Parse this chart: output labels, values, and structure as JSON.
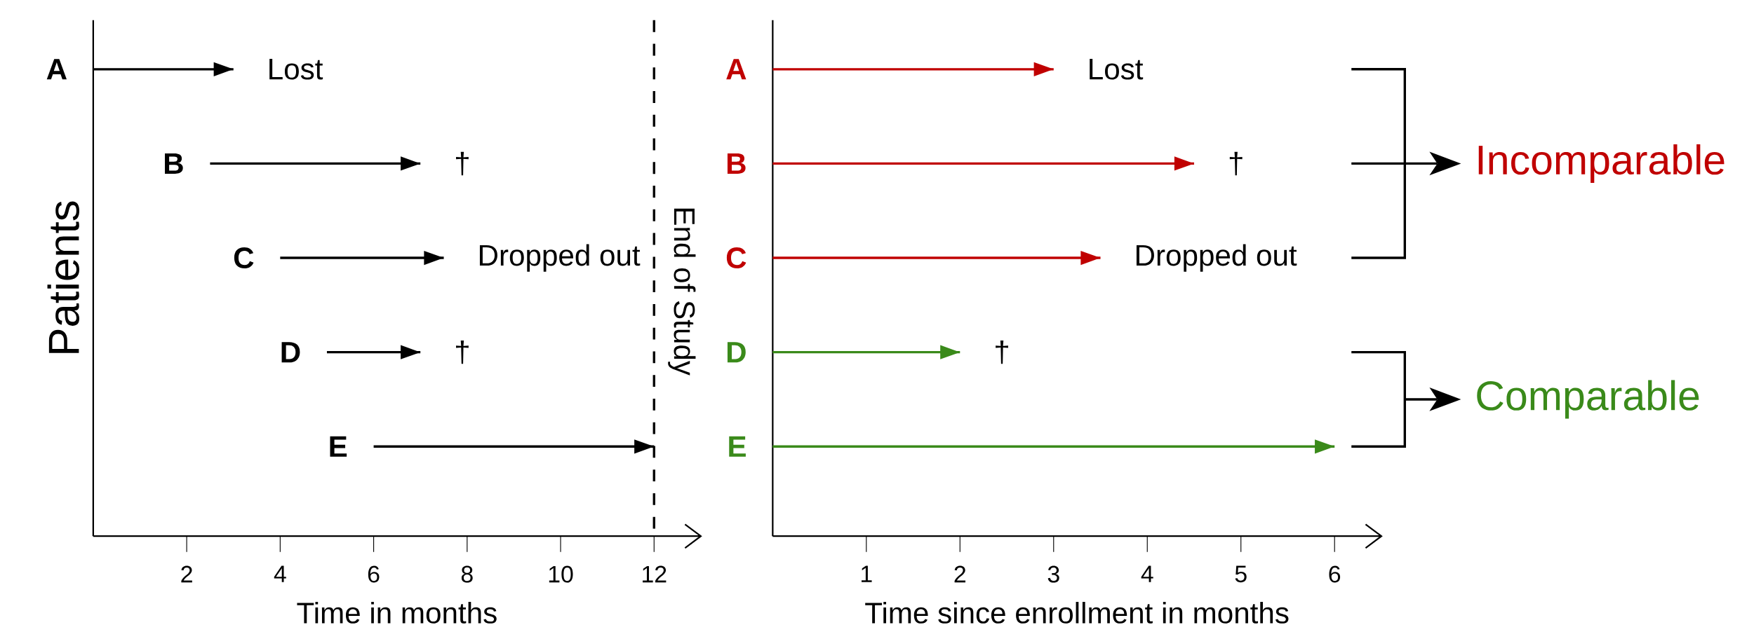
{
  "chart_data": [
    {
      "type": "bar",
      "orientation": "horizontal",
      "xlabel": "Time in months",
      "ylabel": "Patients",
      "categories": [
        "A",
        "B",
        "C",
        "D",
        "E"
      ],
      "base": [
        0,
        2.5,
        4,
        5,
        6
      ],
      "values": [
        3,
        4.5,
        3.5,
        2,
        6
      ],
      "colors": [
        "#000000",
        "#000000",
        "#000000",
        "#000000",
        "#000000"
      ],
      "xlim": [
        0,
        13
      ],
      "xticks": [
        2,
        4,
        6,
        8,
        10,
        12
      ],
      "ref_lines": [
        {
          "axis": "x",
          "value": 12,
          "label": "End of Study",
          "line_style": "dashed"
        }
      ],
      "annotations": [
        "Lost",
        "†",
        "Dropped out",
        "†"
      ]
    },
    {
      "type": "bar",
      "orientation": "horizontal",
      "xlabel": "Time since enrollment in months",
      "categories": [
        "A",
        "B",
        "C",
        "D",
        "E"
      ],
      "base": [
        0,
        0,
        0,
        0,
        0
      ],
      "values": [
        3,
        4.5,
        3.5,
        2,
        6
      ],
      "colors": [
        "#c00000",
        "#c00000",
        "#c00000",
        "#3a8a1a",
        "#3a8a1a"
      ],
      "xlim": [
        0,
        6.5
      ],
      "xticks": [
        1,
        2,
        3,
        4,
        5,
        6
      ],
      "annotations": [
        {
          "text": "Lost",
          "x": 3,
          "y": "A"
        },
        {
          "text": "†",
          "x": 4.5,
          "y": "B"
        },
        {
          "text": "Dropped out",
          "x": 3.5,
          "y": "C"
        },
        {
          "text": "†",
          "x": 2,
          "y": "D"
        },
        "Incomparable",
        "Comparable"
      ]
    }
  ]
}
